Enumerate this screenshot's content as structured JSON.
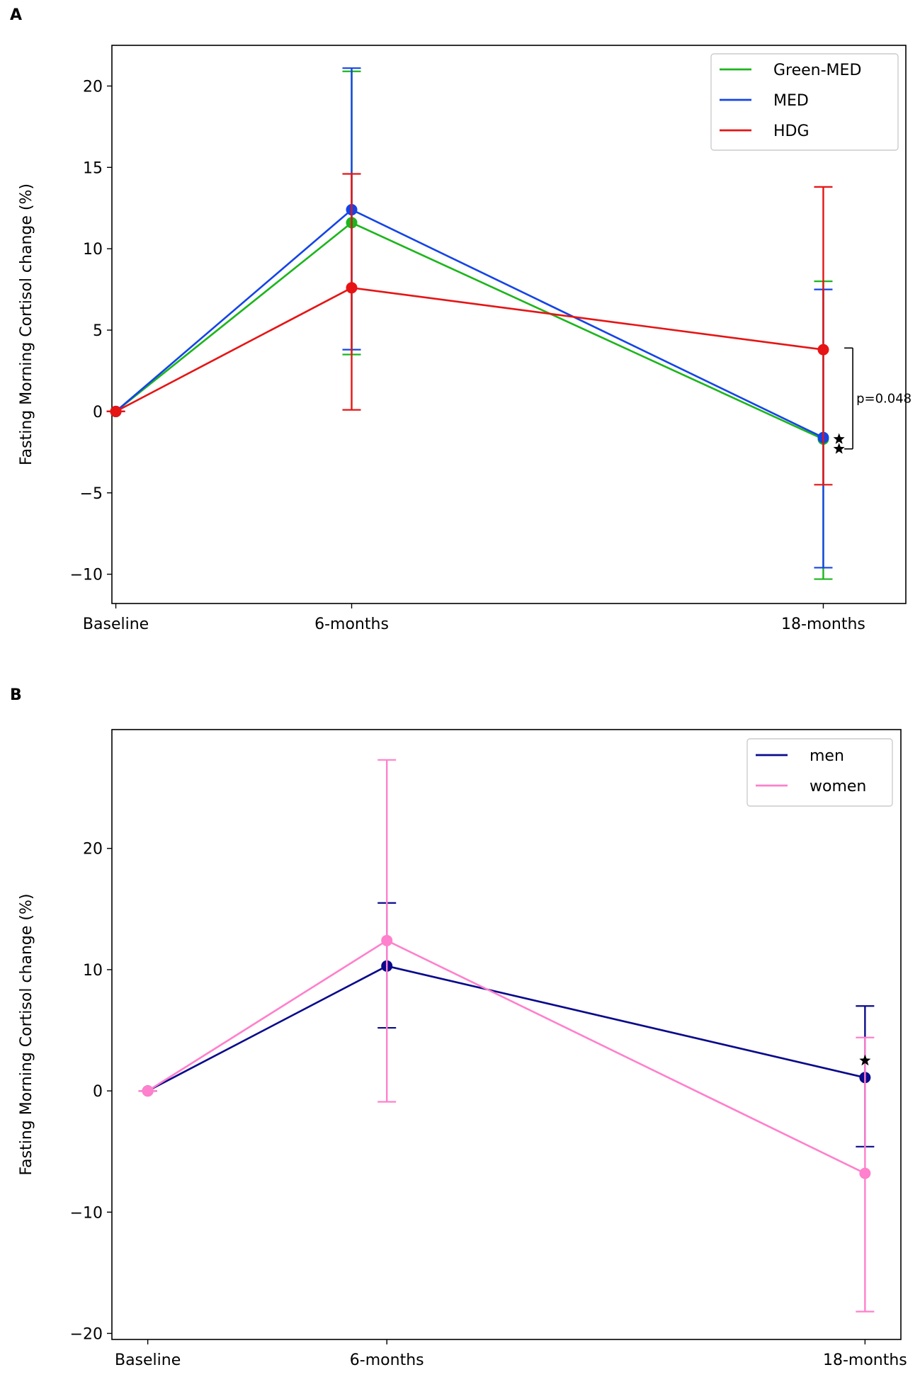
{
  "chart_data": [
    {
      "panel_label": "A",
      "type": "line",
      "ylabel": "Fasting Morning Cortisol change (%)",
      "xlabel": "",
      "categories": [
        "Baseline",
        "6-months",
        "18-months"
      ],
      "x": [
        0,
        6,
        18
      ],
      "xlim": [
        -0.1,
        20.1
      ],
      "ylim": [
        -11.8,
        22.5
      ],
      "yticks": [
        -10,
        -5,
        0,
        5,
        10,
        15,
        20
      ],
      "ytick_labels": [
        "−10",
        "−5",
        "0",
        "5",
        "10",
        "15",
        "20"
      ],
      "legend_position": "top-right",
      "series": [
        {
          "name": "Green-MED",
          "color": "#1cb51c",
          "values": [
            0,
            11.6,
            -1.7
          ],
          "err_low": [
            0,
            3.5,
            -10.3
          ],
          "err_high": [
            0,
            20.9,
            8.0
          ]
        },
        {
          "name": "MED",
          "color": "#1444e6",
          "values": [
            0,
            12.4,
            -1.6
          ],
          "err_low": [
            0,
            3.8,
            -9.6
          ],
          "err_high": [
            0,
            21.1,
            7.5
          ]
        },
        {
          "name": "HDG",
          "color": "#e61414",
          "values": [
            0,
            7.6,
            3.8
          ],
          "err_low": [
            0,
            0.1,
            -4.5
          ],
          "err_high": [
            0,
            14.6,
            13.8
          ]
        }
      ],
      "annotations": [
        {
          "type": "bracket",
          "x": 18.75,
          "y_top": 3.9,
          "y_bottom": -2.3,
          "label": "p=0.048"
        },
        {
          "type": "star",
          "x": 18.4,
          "y": -1.7
        },
        {
          "type": "star",
          "x": 18.4,
          "y": -2.3
        }
      ]
    },
    {
      "panel_label": "B",
      "type": "line",
      "ylabel": "Fasting Morning Cortisol change (%)",
      "xlabel": "",
      "categories": [
        "Baseline",
        "6-months",
        "18-months"
      ],
      "x": [
        0,
        6,
        18
      ],
      "xlim": [
        -0.9,
        18.9
      ],
      "ylim": [
        -20.5,
        29.8
      ],
      "yticks": [
        -20,
        -10,
        0,
        10,
        20
      ],
      "ytick_labels": [
        "−20",
        "−10",
        "0",
        "10",
        "20"
      ],
      "legend_position": "top-right",
      "series": [
        {
          "name": "men",
          "color": "#0a0a8c",
          "values": [
            0,
            10.3,
            1.1
          ],
          "err_low": [
            0,
            5.2,
            -4.6
          ],
          "err_high": [
            0,
            15.5,
            7.0
          ]
        },
        {
          "name": "women",
          "color": "#ff80cc",
          "values": [
            0,
            12.4,
            -6.8
          ],
          "err_low": [
            0,
            -0.9,
            -18.2
          ],
          "err_high": [
            0,
            27.3,
            4.4
          ]
        }
      ],
      "annotations": [
        {
          "type": "star",
          "x": 18,
          "y": 2.5
        }
      ]
    }
  ]
}
